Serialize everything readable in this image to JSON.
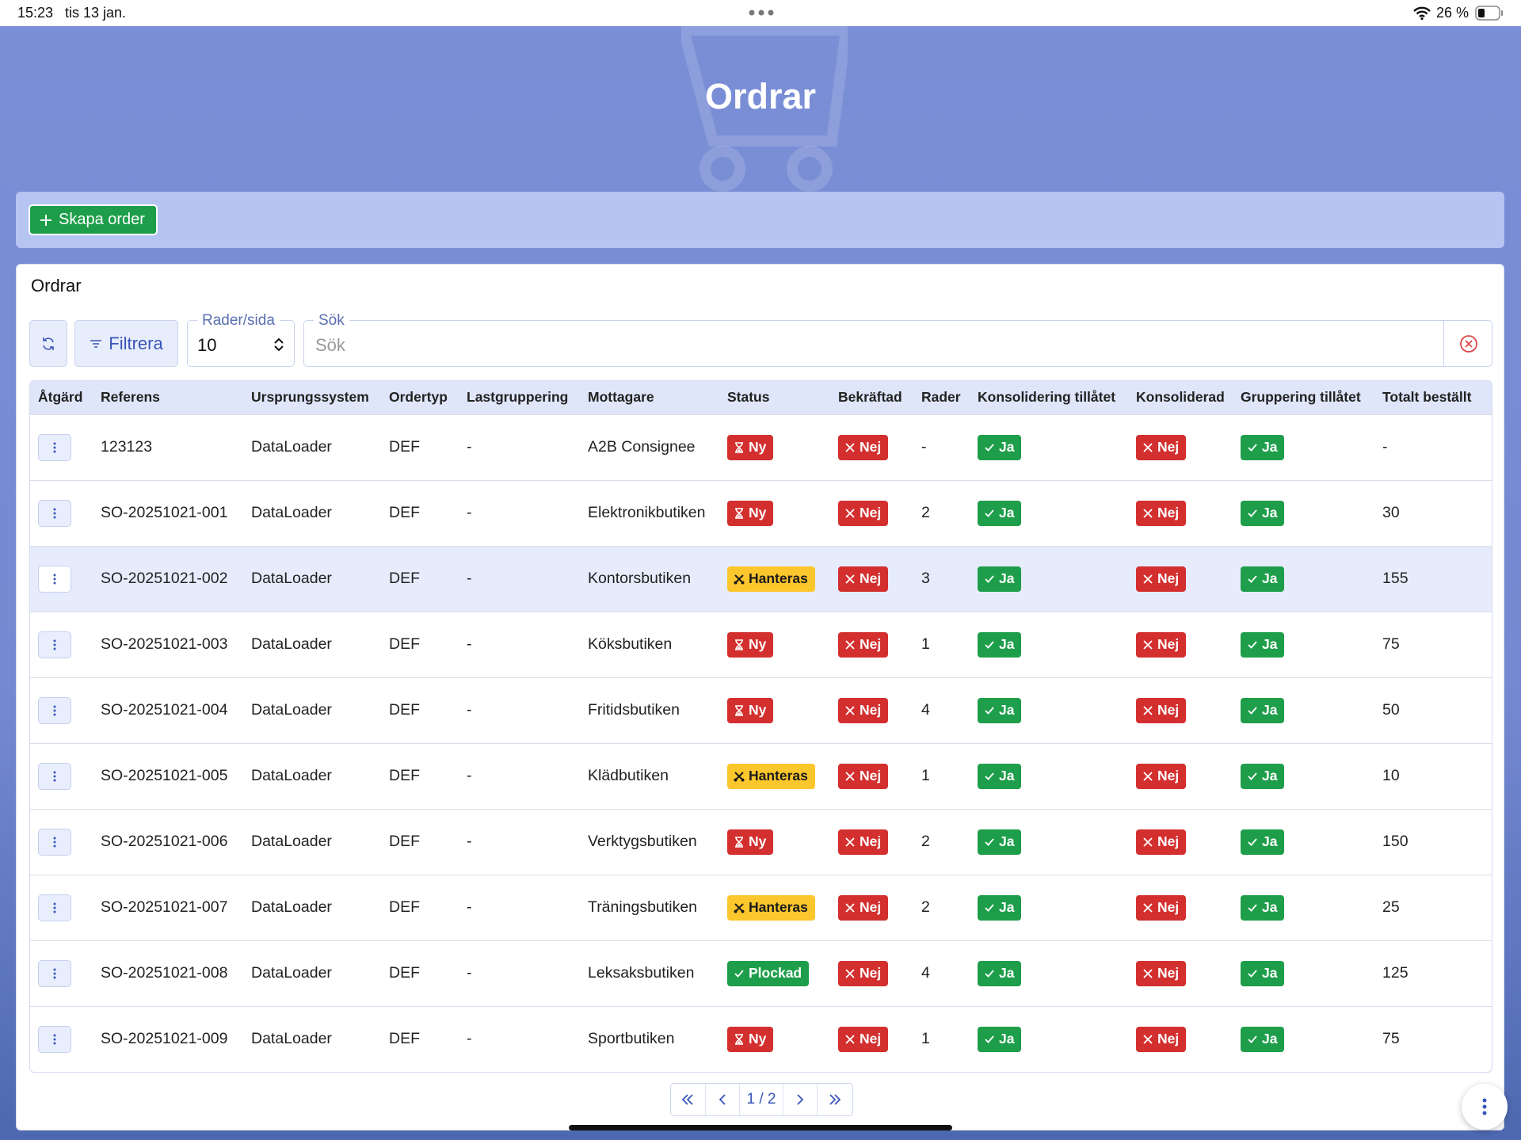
{
  "status_bar": {
    "time": "15:23",
    "date": "tis 13 jan.",
    "battery": "26 %"
  },
  "header": {
    "title": "Ordrar"
  },
  "actions": {
    "create_button": "Skapa order"
  },
  "panel": {
    "title": "Ordrar",
    "filter_button": "Filtrera",
    "rows_per_page": {
      "label": "Rader/sida",
      "value": "10"
    },
    "search": {
      "label": "Sök",
      "placeholder": "Sök"
    }
  },
  "badge_styles": {
    "red": {
      "bg": "#d32f2f",
      "fg": "#ffffff"
    },
    "green": {
      "bg": "#1e9e4a",
      "fg": "#ffffff"
    },
    "yellow": {
      "bg": "#fcc62d",
      "fg": "#1a1a1a"
    }
  },
  "table": {
    "columns": [
      "Åtgärd",
      "Referens",
      "Ursprungssystem",
      "Ordertyp",
      "Lastgruppering",
      "Mottagare",
      "Status",
      "Bekräftad",
      "Rader",
      "Konsolidering tillåtet",
      "Konsoliderad",
      "Gruppering tillåtet",
      "Totalt beställt"
    ],
    "rows": [
      [
        "123123",
        "DataLoader",
        "DEF",
        "-",
        "A2B Consignee",
        {
          "text": "Ny",
          "style": "red",
          "icon": "hourglass"
        },
        {
          "text": "Nej",
          "style": "red",
          "icon": "cross"
        },
        "-",
        {
          "text": "Ja",
          "style": "green",
          "icon": "check"
        },
        {
          "text": "Nej",
          "style": "red",
          "icon": "cross"
        },
        {
          "text": "Ja",
          "style": "green",
          "icon": "check"
        },
        "-"
      ],
      [
        "SO-20251021-001",
        "DataLoader",
        "DEF",
        "-",
        "Elektronikbutiken",
        {
          "text": "Ny",
          "style": "red",
          "icon": "hourglass"
        },
        {
          "text": "Nej",
          "style": "red",
          "icon": "cross"
        },
        "2",
        {
          "text": "Ja",
          "style": "green",
          "icon": "check"
        },
        {
          "text": "Nej",
          "style": "red",
          "icon": "cross"
        },
        {
          "text": "Ja",
          "style": "green",
          "icon": "check"
        },
        "30"
      ],
      [
        "SO-20251021-002",
        "DataLoader",
        "DEF",
        "-",
        "Kontorsbutiken",
        {
          "text": "Hanteras",
          "style": "yellow",
          "icon": "tools"
        },
        {
          "text": "Nej",
          "style": "red",
          "icon": "cross"
        },
        "3",
        {
          "text": "Ja",
          "style": "green",
          "icon": "check"
        },
        {
          "text": "Nej",
          "style": "red",
          "icon": "cross"
        },
        {
          "text": "Ja",
          "style": "green",
          "icon": "check"
        },
        "155"
      ],
      [
        "SO-20251021-003",
        "DataLoader",
        "DEF",
        "-",
        "Köksbutiken",
        {
          "text": "Ny",
          "style": "red",
          "icon": "hourglass"
        },
        {
          "text": "Nej",
          "style": "red",
          "icon": "cross"
        },
        "1",
        {
          "text": "Ja",
          "style": "green",
          "icon": "check"
        },
        {
          "text": "Nej",
          "style": "red",
          "icon": "cross"
        },
        {
          "text": "Ja",
          "style": "green",
          "icon": "check"
        },
        "75"
      ],
      [
        "SO-20251021-004",
        "DataLoader",
        "DEF",
        "-",
        "Fritidsbutiken",
        {
          "text": "Ny",
          "style": "red",
          "icon": "hourglass"
        },
        {
          "text": "Nej",
          "style": "red",
          "icon": "cross"
        },
        "4",
        {
          "text": "Ja",
          "style": "green",
          "icon": "check"
        },
        {
          "text": "Nej",
          "style": "red",
          "icon": "cross"
        },
        {
          "text": "Ja",
          "style": "green",
          "icon": "check"
        },
        "50"
      ],
      [
        "SO-20251021-005",
        "DataLoader",
        "DEF",
        "-",
        "Klädbutiken",
        {
          "text": "Hanteras",
          "style": "yellow",
          "icon": "tools"
        },
        {
          "text": "Nej",
          "style": "red",
          "icon": "cross"
        },
        "1",
        {
          "text": "Ja",
          "style": "green",
          "icon": "check"
        },
        {
          "text": "Nej",
          "style": "red",
          "icon": "cross"
        },
        {
          "text": "Ja",
          "style": "green",
          "icon": "check"
        },
        "10"
      ],
      [
        "SO-20251021-006",
        "DataLoader",
        "DEF",
        "-",
        "Verktygsbutiken",
        {
          "text": "Ny",
          "style": "red",
          "icon": "hourglass"
        },
        {
          "text": "Nej",
          "style": "red",
          "icon": "cross"
        },
        "2",
        {
          "text": "Ja",
          "style": "green",
          "icon": "check"
        },
        {
          "text": "Nej",
          "style": "red",
          "icon": "cross"
        },
        {
          "text": "Ja",
          "style": "green",
          "icon": "check"
        },
        "150"
      ],
      [
        "SO-20251021-007",
        "DataLoader",
        "DEF",
        "-",
        "Träningsbutiken",
        {
          "text": "Hanteras",
          "style": "yellow",
          "icon": "tools"
        },
        {
          "text": "Nej",
          "style": "red",
          "icon": "cross"
        },
        "2",
        {
          "text": "Ja",
          "style": "green",
          "icon": "check"
        },
        {
          "text": "Nej",
          "style": "red",
          "icon": "cross"
        },
        {
          "text": "Ja",
          "style": "green",
          "icon": "check"
        },
        "25"
      ],
      [
        "SO-20251021-008",
        "DataLoader",
        "DEF",
        "-",
        "Leksaksbutiken",
        {
          "text": "Plockad",
          "style": "green",
          "icon": "check"
        },
        {
          "text": "Nej",
          "style": "red",
          "icon": "cross"
        },
        "4",
        {
          "text": "Ja",
          "style": "green",
          "icon": "check"
        },
        {
          "text": "Nej",
          "style": "red",
          "icon": "cross"
        },
        {
          "text": "Ja",
          "style": "green",
          "icon": "check"
        },
        "125"
      ],
      [
        "SO-20251021-009",
        "DataLoader",
        "DEF",
        "-",
        "Sportbutiken",
        {
          "text": "Ny",
          "style": "red",
          "icon": "hourglass"
        },
        {
          "text": "Nej",
          "style": "red",
          "icon": "cross"
        },
        "1",
        {
          "text": "Ja",
          "style": "green",
          "icon": "check"
        },
        {
          "text": "Nej",
          "style": "red",
          "icon": "cross"
        },
        {
          "text": "Ja",
          "style": "green",
          "icon": "check"
        },
        "75"
      ]
    ]
  },
  "pagination": {
    "page": "1 / 2"
  }
}
